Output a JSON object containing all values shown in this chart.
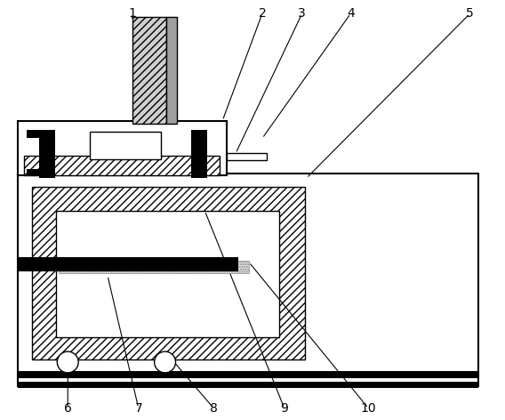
{
  "bg_color": "#ffffff",
  "line_color": "#000000",
  "fig_width": 5.68,
  "fig_height": 4.72,
  "dpi": 100,
  "label_fontsize": 10
}
